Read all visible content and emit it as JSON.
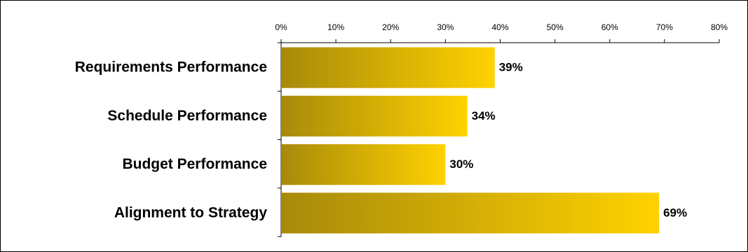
{
  "chart_data": {
    "type": "bar",
    "orientation": "horizontal",
    "categories": [
      "Requirements Performance",
      "Schedule Performance",
      "Budget Performance",
      "Alignment to Strategy"
    ],
    "values": [
      39,
      34,
      30,
      69
    ],
    "data_labels": [
      "39%",
      "34%",
      "30%",
      "69%"
    ],
    "xlim": [
      0,
      80
    ],
    "x_ticks": [
      0,
      10,
      20,
      30,
      40,
      50,
      60,
      70,
      80
    ],
    "x_tick_labels": [
      "0%",
      "10%",
      "20%",
      "30%",
      "40%",
      "50%",
      "60%",
      "70%",
      "80%"
    ],
    "x_axis_position": "top",
    "grid": false,
    "legend": "none",
    "colors": {
      "bar_start": "#a88a0a",
      "bar_end": "#ffd200",
      "frame": "#000000"
    }
  }
}
